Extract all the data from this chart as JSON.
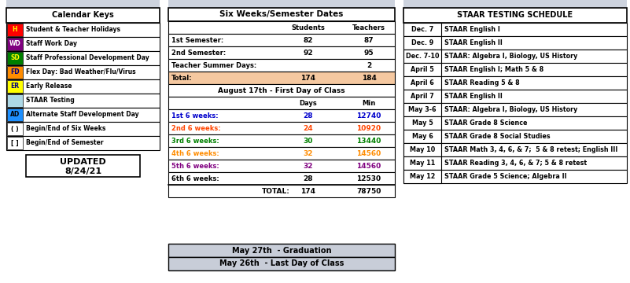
{
  "bg_color": "#ffffff",
  "header_bg": "#cdd3de",
  "total_highlight": "#f5c8a0",
  "grad_bg": "#c8cdd8",
  "cal_keys_title": "Calendar Keys",
  "cal_keys": [
    {
      "code": "H",
      "label": "Student & Teacher Holidays",
      "bg": "#ff0000",
      "fg": "#ffff00"
    },
    {
      "code": "WD",
      "label": "Staff Work Day",
      "bg": "#800080",
      "fg": "#ffffff"
    },
    {
      "code": "SD",
      "label": "Staff Professional Development Day",
      "bg": "#008000",
      "fg": "#ffff00"
    },
    {
      "code": "FD",
      "label": "Flex Day: Bad Weather/Flu/Virus",
      "bg": "#ff8c00",
      "fg": "#000080"
    },
    {
      "code": "ER",
      "label": "Early Release",
      "bg": "#ffff00",
      "fg": "#000080"
    },
    {
      "code": "",
      "label": "STAAR Testing",
      "bg": "#add8e6",
      "fg": "#000000"
    },
    {
      "code": "AD",
      "label": "Alternate Staff Development Day",
      "bg": "#1e90ff",
      "fg": "#000000"
    },
    {
      "code": "( )",
      "label": "Begin/End of Six Weeks",
      "bg": "#ffffff",
      "fg": "#000000"
    },
    {
      "code": "[ ]",
      "label": "Begin/End of Semester",
      "bg": "#ffffff",
      "fg": "#000000"
    }
  ],
  "six_weeks_title": "Six Weeks/Semester Dates",
  "semester_rows": [
    [
      "1st Semester:",
      "82",
      "87"
    ],
    [
      "2nd Semester:",
      "92",
      "95"
    ],
    [
      "Teacher Summer Days:",
      "",
      "2"
    ],
    [
      "Total:",
      "174",
      "184"
    ]
  ],
  "first_day": "August 17th - First Day of Class",
  "weeks_data": [
    {
      "label": "1st 6 weeks:",
      "days": "28",
      "min": "12740",
      "color": "#0000cc"
    },
    {
      "label": "2nd 6 weeks:",
      "days": "24",
      "min": "10920",
      "color": "#ff4500"
    },
    {
      "label": "3rd 6 weeks:",
      "days": "30",
      "min": "13440",
      "color": "#008000"
    },
    {
      "label": "4th 6 weeks:",
      "days": "32",
      "min": "14560",
      "color": "#ff8c00"
    },
    {
      "label": "5th 6 weeks:",
      "days": "32",
      "min": "14560",
      "color": "#800080"
    },
    {
      "label": "6th 6 weeks:",
      "days": "28",
      "min": "12530",
      "color": "#000000"
    }
  ],
  "total_row": [
    "TOTAL:",
    "174",
    "78750"
  ],
  "grad_text": "May 27th  - Graduation",
  "lastday_text": "May 26th  - Last Day of Class",
  "staar_title": "STAAR TESTING SCHEDULE",
  "staar_rows": [
    [
      "Dec. 7",
      "STAAR English I"
    ],
    [
      "Dec. 9",
      "STAAR English II"
    ],
    [
      "Dec. 7-10",
      "STAAR: Algebra I, Biology, US History"
    ],
    [
      "April 5",
      "STAAR English I; Math 5 & 8"
    ],
    [
      "April 6",
      "STAAR Reading 5 & 8"
    ],
    [
      "April 7",
      "STAAR English II"
    ],
    [
      "May 3-6",
      "STAAR: Algebra I, Biology, US History"
    ],
    [
      "May 5",
      "STAAR Grade 8 Science"
    ],
    [
      "May 6",
      "STAAR Grade 8 Social Studies"
    ],
    [
      "May 10",
      "STAAR Math 3, 4, 6, & 7;  5 & 8 retest; English III"
    ],
    [
      "May 11",
      "STAAR Reading 3, 4, 6, & 7; 5 & 8 retest"
    ],
    [
      "May 12",
      "STAAR Grade 5 Science; Algebra II"
    ]
  ]
}
